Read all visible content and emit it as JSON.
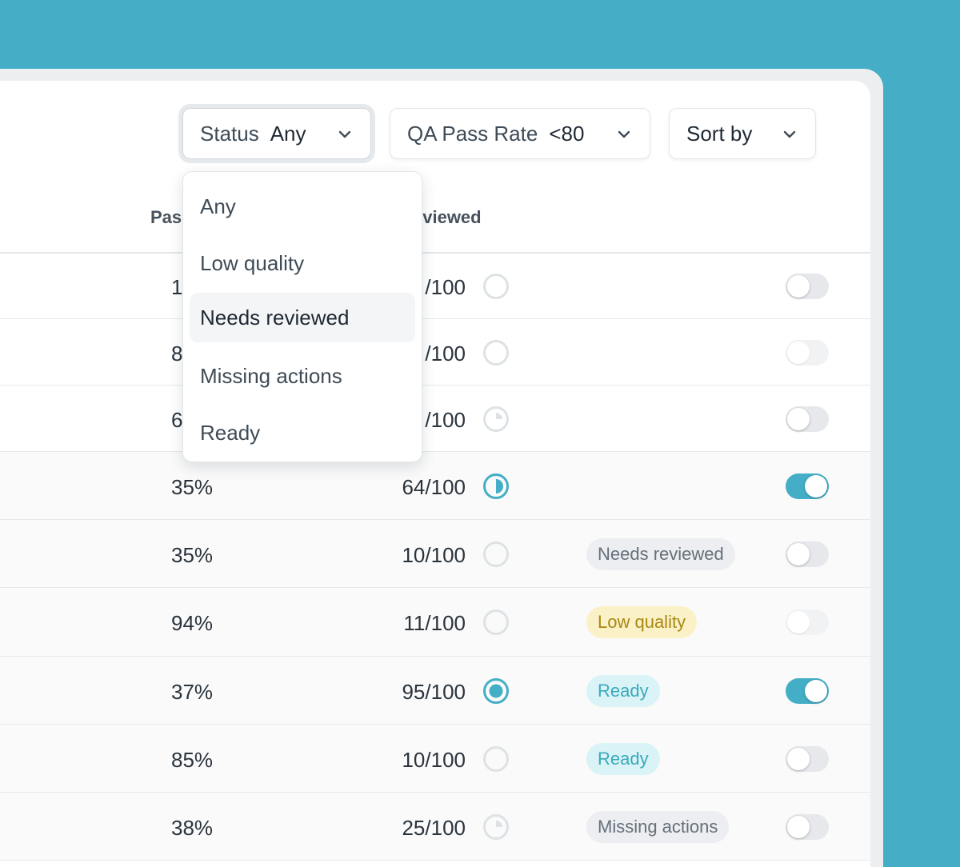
{
  "filters": {
    "status": {
      "label": "Status",
      "value": "Any"
    },
    "qa": {
      "label": "QA Pass Rate",
      "value": "<80"
    },
    "sort": {
      "label": "Sort by"
    }
  },
  "columns": {
    "pass": "Pas",
    "reviewed": "eviewed"
  },
  "status_menu": {
    "items": [
      "Any",
      "Low quality",
      "Needs reviewed",
      "Missing actions",
      "Ready"
    ],
    "highlighted": "Needs reviewed"
  },
  "rows": [
    {
      "pass": "1",
      "reviewed": "/100",
      "progress": "empty",
      "badge": "",
      "toggle": "off"
    },
    {
      "pass": "8",
      "reviewed": "/100",
      "progress": "empty",
      "badge": "",
      "toggle": "disabled"
    },
    {
      "pass": "6",
      "reviewed": "/100",
      "progress": "quarter",
      "badge": "",
      "toggle": "off"
    },
    {
      "pass": "35%",
      "reviewed": "64/100",
      "progress": "half",
      "badge": "",
      "toggle": "on"
    },
    {
      "pass": "35%",
      "reviewed": "10/100",
      "progress": "empty",
      "badge": "Needs reviewed",
      "toggle": "off"
    },
    {
      "pass": "94%",
      "reviewed": "11/100",
      "progress": "empty",
      "badge": "Low quality",
      "toggle": "disabled"
    },
    {
      "pass": "37%",
      "reviewed": "95/100",
      "progress": "full",
      "badge": "Ready",
      "toggle": "on"
    },
    {
      "pass": "85%",
      "reviewed": "10/100",
      "progress": "empty",
      "badge": "Ready",
      "toggle": "off"
    },
    {
      "pass": "38%",
      "reviewed": "25/100",
      "progress": "quarter",
      "badge": "Missing actions",
      "toggle": "off"
    }
  ],
  "colors": {
    "accent": "#43aec6",
    "background": "#45aec6"
  }
}
